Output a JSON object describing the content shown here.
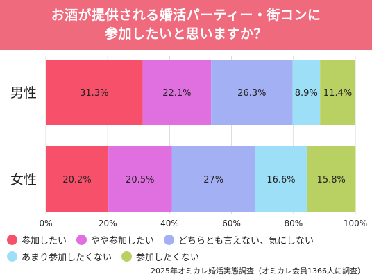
{
  "title": {
    "line1": "お酒が提供される婚活パーティー・街コンに",
    "line2": "参加したいと思いますか？"
  },
  "chart_data": {
    "type": "bar",
    "orientation": "horizontal-stacked-100",
    "categories": [
      "男性",
      "女性"
    ],
    "series": [
      {
        "name": "参加したい",
        "color": "#f6506b",
        "values": [
          31.3,
          20.2
        ],
        "labels": [
          "31.3%",
          "20.2%"
        ]
      },
      {
        "name": "やや参加したい",
        "color": "#e070e0",
        "values": [
          22.1,
          20.5
        ],
        "labels": [
          "22.1%",
          "20.5%"
        ]
      },
      {
        "name": "どちらとも言えない、気にしない",
        "color": "#a4b0f4",
        "values": [
          26.3,
          27
        ],
        "labels": [
          "26.3%",
          "27%"
        ]
      },
      {
        "name": "あまり参加したくない",
        "color": "#9edff8",
        "values": [
          8.9,
          16.6
        ],
        "labels": [
          "8.9%",
          "16.6%"
        ]
      },
      {
        "name": "参加したくない",
        "color": "#b9d062",
        "values": [
          11.4,
          15.8
        ],
        "labels": [
          "11.4%",
          "15.8%"
        ]
      }
    ],
    "xlim": [
      0,
      100
    ],
    "xticks": [
      "0%",
      "20%",
      "40%",
      "60%",
      "80%",
      "100%"
    ],
    "grid": true,
    "legend_position": "bottom"
  },
  "footnote": "2025年オミカレ婚活実態調査（オミカレ会員1366人に調査）"
}
